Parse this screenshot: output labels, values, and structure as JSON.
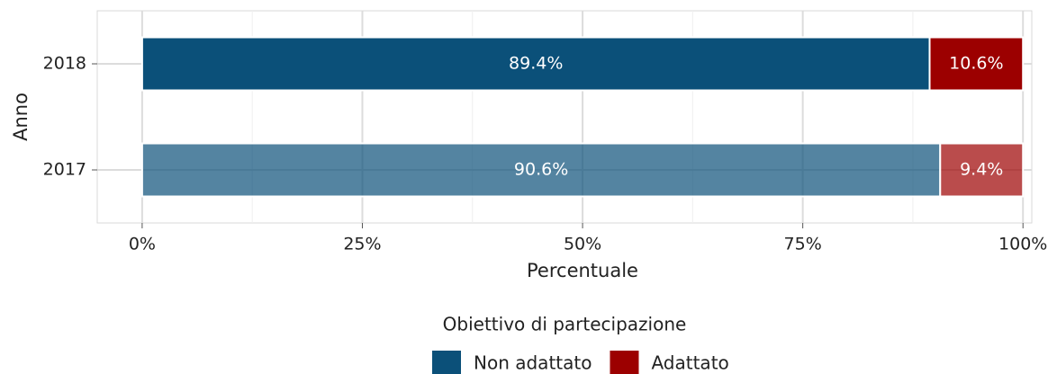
{
  "chart_data": {
    "type": "stacked-barh",
    "categories": [
      "2017",
      "2018"
    ],
    "category_opacity": [
      0.7,
      1
    ],
    "series": [
      {
        "name": "Non adattato",
        "color": "#0b5079",
        "values": [
          90.6,
          89.4
        ],
        "value_labels": [
          "90.6%",
          "89.4%"
        ]
      },
      {
        "name": "Adattato",
        "color": "#9c0000",
        "values": [
          9.4,
          10.6
        ],
        "value_labels": [
          "9.4%",
          "10.6%"
        ]
      }
    ],
    "xlim": [
      -5.1,
      101
    ],
    "xticks": [
      {
        "value": 0,
        "label": "0%"
      },
      {
        "value": 25,
        "label": "25%"
      },
      {
        "value": 50,
        "label": "50%"
      },
      {
        "value": 75,
        "label": "75%"
      },
      {
        "value": 100,
        "label": "100%"
      }
    ],
    "xminor": [
      12.5,
      37.5,
      62.5,
      87.5
    ],
    "x_label": "Percentuale",
    "y_label": "Anno",
    "legend_title": "Obiettivo di partecipazione",
    "legend_position": "bottom",
    "grid": true
  }
}
